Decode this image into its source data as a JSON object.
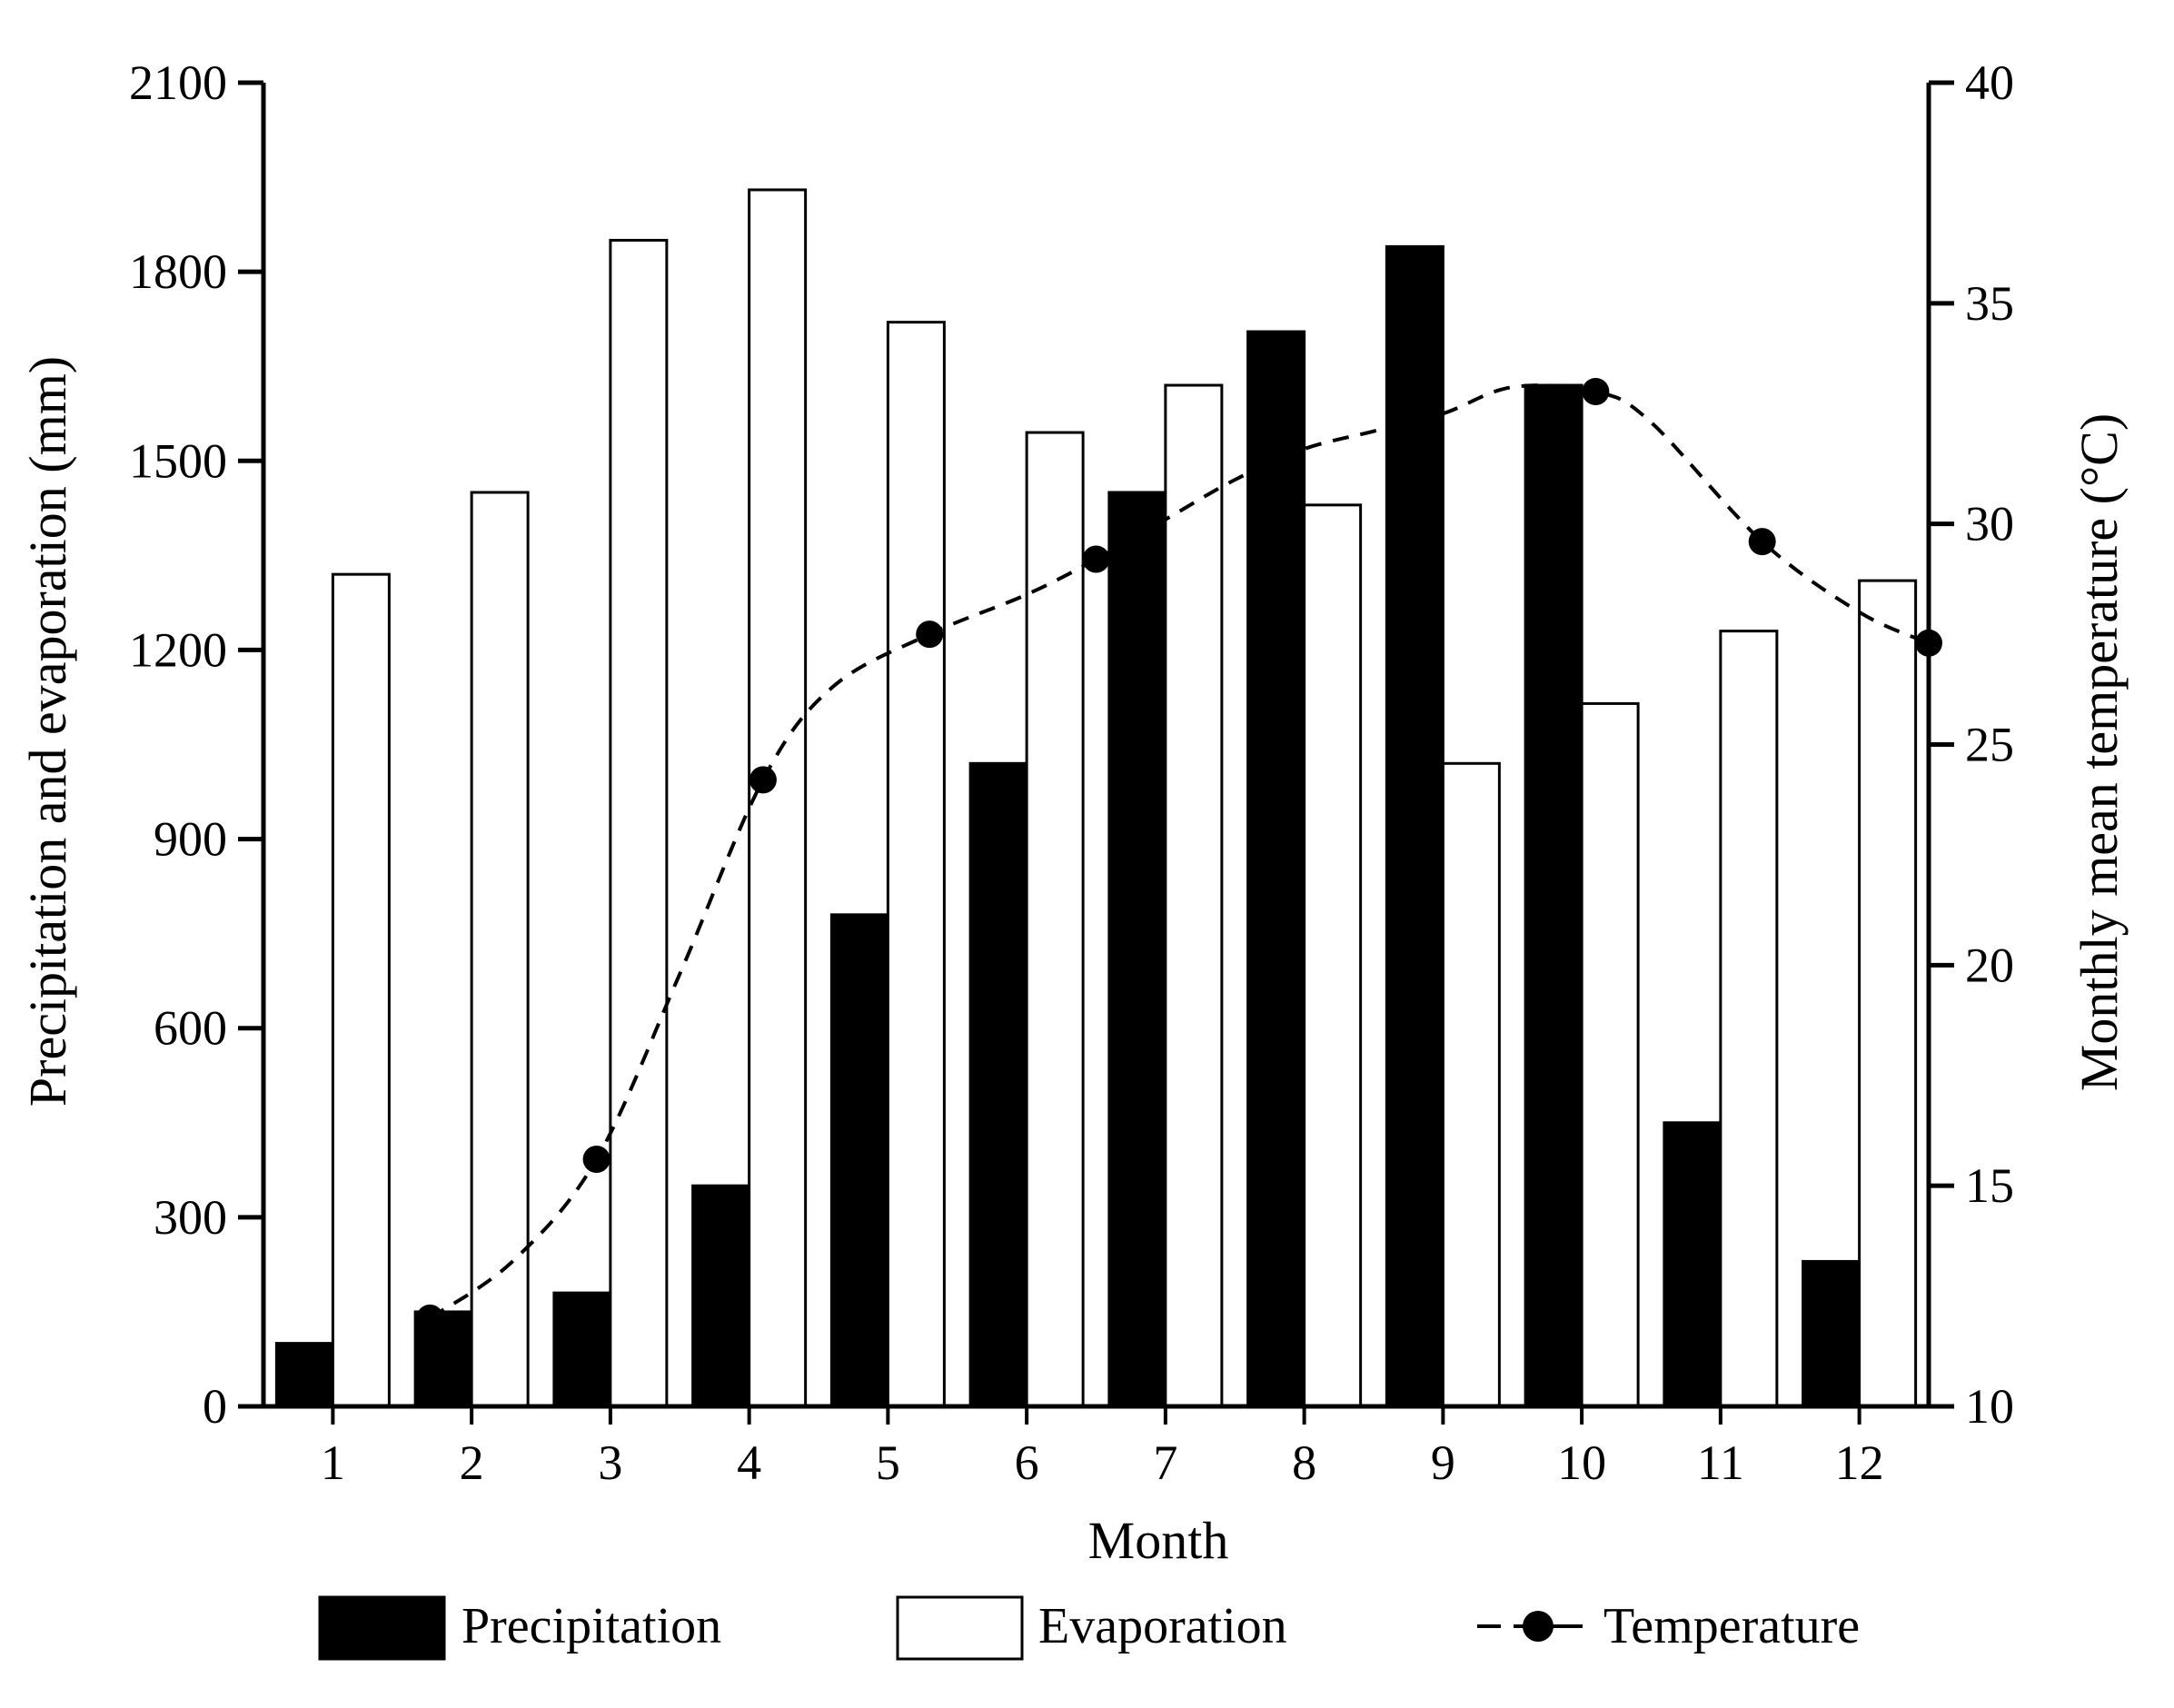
{
  "chart_data": {
    "type": "bar",
    "title": "",
    "xlabel": "Month",
    "ylabel": "Precipitation and evaporation (mm)",
    "y2label": "Monthly mean temperature (°C)",
    "categories": [
      "1",
      "2",
      "3",
      "4",
      "5",
      "6",
      "7",
      "8",
      "9",
      "10",
      "11",
      "12"
    ],
    "ylim": [
      0,
      2100
    ],
    "yticks": [
      "0",
      "300",
      "600",
      "900",
      "1200",
      "1500",
      "1800",
      "2100"
    ],
    "y2lim": [
      10,
      40
    ],
    "y2ticks": [
      "10",
      "15",
      "20",
      "25",
      "30",
      "35",
      "40"
    ],
    "grid": false,
    "legend_position": "bottom",
    "series": [
      {
        "name": "Precipitation",
        "kind": "bar",
        "axis": "left",
        "color": "#000000",
        "values": [
          100,
          150,
          180,
          350,
          780,
          1020,
          1450,
          1705,
          1840,
          1620,
          450,
          230
        ]
      },
      {
        "name": "Evaporation",
        "kind": "bar",
        "axis": "left",
        "color": "#ffffff",
        "values": [
          1320,
          1450,
          1850,
          1930,
          1720,
          1545,
          1620,
          1430,
          1020,
          1115,
          1230,
          1310
        ]
      },
      {
        "name": "Temperature",
        "kind": "line",
        "axis": "right",
        "color": "#000000",
        "line_style": "dashed",
        "marker": "circle",
        "values": [
          null,
          12.0,
          15.6,
          24.2,
          27.5,
          29.2,
          null,
          null,
          null,
          33.0,
          29.6,
          27.3
        ],
        "point_x": [
          null,
          1.7,
          2.9,
          4.1,
          5.3,
          6.5,
          null,
          null,
          null,
          10.1,
          11.3,
          12.5
        ],
        "trend_x": [
          1.7,
          2.3,
          2.9,
          3.5,
          4.1,
          4.6,
          5.3,
          6.0,
          6.5,
          7.0,
          7.5,
          8.0,
          8.5,
          9.0,
          9.5,
          10.1,
          10.5,
          11.3,
          12.0,
          12.5
        ],
        "trend_y": [
          12.0,
          13.3,
          15.6,
          19.8,
          24.2,
          26.3,
          27.5,
          28.4,
          29.2,
          30.1,
          31.0,
          31.7,
          32.1,
          32.5,
          33.1,
          33.0,
          32.3,
          29.6,
          28.0,
          27.3
        ]
      }
    ]
  }
}
